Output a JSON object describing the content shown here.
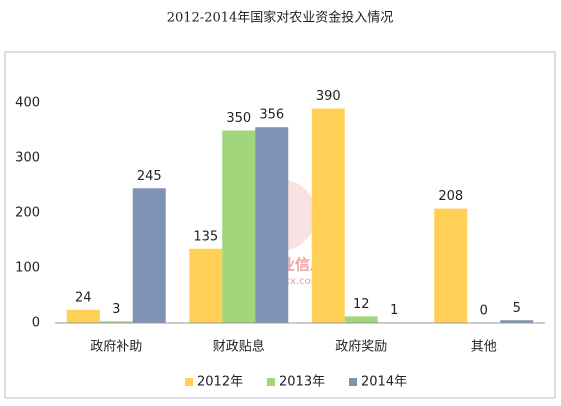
{
  "chart_data": {
    "type": "bar",
    "title": "2012-2014年国家对农业资金投入情况",
    "categories": [
      "政府补助",
      "财政贴息",
      "政府奖励",
      "其他"
    ],
    "series": [
      {
        "name": "2012年",
        "color": "#ffd055",
        "values": [
          24,
          135,
          390,
          208
        ]
      },
      {
        "name": "2013年",
        "color": "#a3d57b",
        "values": [
          3,
          350,
          12,
          0
        ]
      },
      {
        "name": "2014年",
        "color": "#7f92b3",
        "values": [
          245,
          356,
          1,
          5
        ]
      }
    ],
    "ylim": [
      0,
      400
    ],
    "yticks": [
      0,
      100,
      200,
      300,
      400
    ],
    "grid": false,
    "legend": "bottom",
    "watermark": [
      "中国产业信息",
      "www.chyxx.com"
    ]
  }
}
